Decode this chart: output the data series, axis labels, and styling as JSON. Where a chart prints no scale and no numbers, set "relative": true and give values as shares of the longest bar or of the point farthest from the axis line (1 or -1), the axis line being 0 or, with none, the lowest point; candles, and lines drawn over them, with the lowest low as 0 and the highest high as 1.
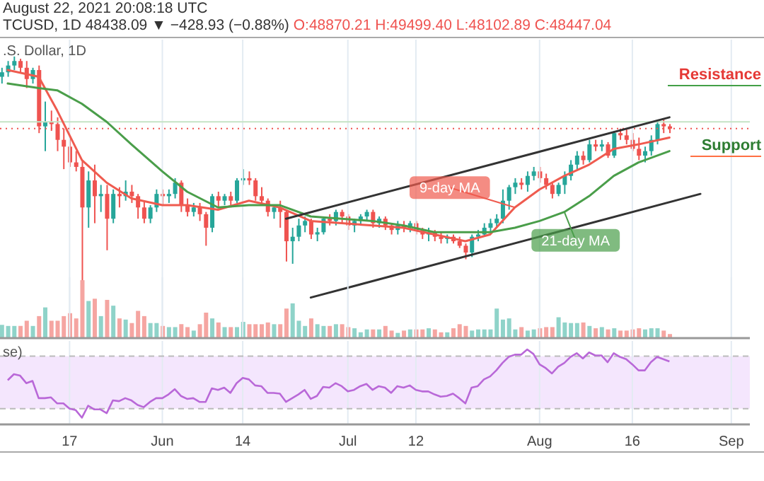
{
  "chart_data": [
    {
      "type": "candlestick",
      "title": "TCUSD, 1D 48438.09 ▼ −428.93 (−0.88%)",
      "subtitle": "O:48870.21 H:49499.40 L:48102.89 C:48447.04",
      "relative": true,
      "grid": "x",
      "tick_labels": false,
      "xlim": [
        "2021-05-05T18:00",
        "2021-09-04"
      ],
      "xticks": [
        "2021-05-17",
        "2021-06-01",
        "2021-06-14",
        "2021-07-01",
        "2021-07-12",
        "2021-08-01",
        "2021-08-16",
        "2021-09-01"
      ],
      "x": [
        "2021-05-06",
        "2021-05-07",
        "2021-05-08",
        "2021-05-09",
        "2021-05-10",
        "2021-05-11",
        "2021-05-12",
        "2021-05-13",
        "2021-05-14",
        "2021-05-15",
        "2021-05-16",
        "2021-05-17",
        "2021-05-18",
        "2021-05-19",
        "2021-05-20",
        "2021-05-21",
        "2021-05-22",
        "2021-05-23",
        "2021-05-24",
        "2021-05-25",
        "2021-05-26",
        "2021-05-27",
        "2021-05-28",
        "2021-05-29",
        "2021-05-30",
        "2021-05-31",
        "2021-06-01",
        "2021-06-02",
        "2021-06-03",
        "2021-06-04",
        "2021-06-05",
        "2021-06-06",
        "2021-06-07",
        "2021-06-08",
        "2021-06-09",
        "2021-06-10",
        "2021-06-11",
        "2021-06-12",
        "2021-06-13",
        "2021-06-14",
        "2021-06-15",
        "2021-06-16",
        "2021-06-17",
        "2021-06-18",
        "2021-06-19",
        "2021-06-20",
        "2021-06-21",
        "2021-06-22",
        "2021-06-23",
        "2021-06-24",
        "2021-06-25",
        "2021-06-26",
        "2021-06-27",
        "2021-06-28",
        "2021-06-29",
        "2021-06-30",
        "2021-07-01",
        "2021-07-02",
        "2021-07-03",
        "2021-07-04",
        "2021-07-05",
        "2021-07-06",
        "2021-07-07",
        "2021-07-08",
        "2021-07-09",
        "2021-07-10",
        "2021-07-11",
        "2021-07-12",
        "2021-07-13",
        "2021-07-14",
        "2021-07-15",
        "2021-07-16",
        "2021-07-17",
        "2021-07-18",
        "2021-07-19",
        "2021-07-20",
        "2021-07-21",
        "2021-07-22",
        "2021-07-23",
        "2021-07-24",
        "2021-07-25",
        "2021-07-26",
        "2021-07-27",
        "2021-07-28",
        "2021-07-29",
        "2021-07-30",
        "2021-07-31",
        "2021-08-01",
        "2021-08-02",
        "2021-08-03",
        "2021-08-04",
        "2021-08-05",
        "2021-08-06",
        "2021-08-07",
        "2021-08-08",
        "2021-08-09",
        "2021-08-10",
        "2021-08-11",
        "2021-08-12",
        "2021-08-13",
        "2021-08-14",
        "2021-08-15",
        "2021-08-16",
        "2021-08-17",
        "2021-08-18",
        "2021-08-19",
        "2021-08-20",
        "2021-08-21",
        "2021-08-22"
      ],
      "ohlc": [
        [
          0.91,
          0.95,
          0.88,
          0.93
        ],
        [
          0.93,
          0.98,
          0.91,
          0.96
        ],
        [
          0.96,
          1.0,
          0.94,
          0.98
        ],
        [
          0.98,
          0.99,
          0.93,
          0.95
        ],
        [
          0.95,
          0.98,
          0.86,
          0.9
        ],
        [
          0.9,
          0.95,
          0.88,
          0.94
        ],
        [
          0.94,
          0.96,
          0.66,
          0.69
        ],
        [
          0.69,
          0.8,
          0.58,
          0.71
        ],
        [
          0.71,
          0.76,
          0.67,
          0.7
        ],
        [
          0.7,
          0.73,
          0.58,
          0.63
        ],
        [
          0.63,
          0.68,
          0.5,
          0.6
        ],
        [
          0.6,
          0.64,
          0.51,
          0.53
        ],
        [
          0.53,
          0.58,
          0.49,
          0.51
        ],
        [
          0.51,
          0.54,
          0.0,
          0.33
        ],
        [
          0.33,
          0.49,
          0.24,
          0.45
        ],
        [
          0.45,
          0.52,
          0.26,
          0.38
        ],
        [
          0.38,
          0.43,
          0.31,
          0.39
        ],
        [
          0.39,
          0.43,
          0.14,
          0.28
        ],
        [
          0.28,
          0.41,
          0.26,
          0.39
        ],
        [
          0.39,
          0.42,
          0.33,
          0.38
        ],
        [
          0.38,
          0.45,
          0.36,
          0.4
        ],
        [
          0.4,
          0.43,
          0.35,
          0.38
        ],
        [
          0.38,
          0.39,
          0.28,
          0.33
        ],
        [
          0.33,
          0.36,
          0.26,
          0.28
        ],
        [
          0.28,
          0.34,
          0.26,
          0.33
        ],
        [
          0.33,
          0.41,
          0.31,
          0.39
        ],
        [
          0.39,
          0.41,
          0.34,
          0.38
        ],
        [
          0.38,
          0.41,
          0.35,
          0.39
        ],
        [
          0.39,
          0.46,
          0.37,
          0.44
        ],
        [
          0.44,
          0.45,
          0.31,
          0.34
        ],
        [
          0.34,
          0.37,
          0.29,
          0.31
        ],
        [
          0.31,
          0.35,
          0.29,
          0.33
        ],
        [
          0.33,
          0.35,
          0.27,
          0.3
        ],
        [
          0.3,
          0.31,
          0.16,
          0.24
        ],
        [
          0.24,
          0.39,
          0.22,
          0.38
        ],
        [
          0.38,
          0.4,
          0.33,
          0.36
        ],
        [
          0.36,
          0.39,
          0.34,
          0.38
        ],
        [
          0.38,
          0.4,
          0.33,
          0.36
        ],
        [
          0.36,
          0.46,
          0.35,
          0.45
        ],
        [
          0.45,
          0.5,
          0.43,
          0.46
        ],
        [
          0.46,
          0.49,
          0.43,
          0.45
        ],
        [
          0.45,
          0.46,
          0.36,
          0.38
        ],
        [
          0.38,
          0.42,
          0.34,
          0.36
        ],
        [
          0.36,
          0.37,
          0.29,
          0.31
        ],
        [
          0.31,
          0.34,
          0.28,
          0.33
        ],
        [
          0.33,
          0.36,
          0.24,
          0.31
        ],
        [
          0.31,
          0.32,
          0.09,
          0.18
        ],
        [
          0.18,
          0.24,
          0.08,
          0.2
        ],
        [
          0.2,
          0.28,
          0.18,
          0.25
        ],
        [
          0.25,
          0.29,
          0.22,
          0.27
        ],
        [
          0.27,
          0.28,
          0.19,
          0.21
        ],
        [
          0.21,
          0.24,
          0.18,
          0.22
        ],
        [
          0.22,
          0.29,
          0.21,
          0.28
        ],
        [
          0.28,
          0.3,
          0.25,
          0.27
        ],
        [
          0.27,
          0.32,
          0.25,
          0.31
        ],
        [
          0.31,
          0.32,
          0.26,
          0.29
        ],
        [
          0.29,
          0.3,
          0.23,
          0.25
        ],
        [
          0.25,
          0.28,
          0.22,
          0.27
        ],
        [
          0.27,
          0.3,
          0.25,
          0.29
        ],
        [
          0.29,
          0.32,
          0.27,
          0.31
        ],
        [
          0.31,
          0.32,
          0.24,
          0.26
        ],
        [
          0.26,
          0.29,
          0.24,
          0.28
        ],
        [
          0.28,
          0.29,
          0.23,
          0.25
        ],
        [
          0.25,
          0.26,
          0.21,
          0.23
        ],
        [
          0.23,
          0.27,
          0.21,
          0.25
        ],
        [
          0.25,
          0.27,
          0.22,
          0.24
        ],
        [
          0.24,
          0.27,
          0.22,
          0.26
        ],
        [
          0.26,
          0.27,
          0.21,
          0.23
        ],
        [
          0.23,
          0.24,
          0.19,
          0.21
        ],
        [
          0.21,
          0.24,
          0.18,
          0.22
        ],
        [
          0.22,
          0.23,
          0.18,
          0.2
        ],
        [
          0.2,
          0.22,
          0.17,
          0.19
        ],
        [
          0.19,
          0.21,
          0.17,
          0.2
        ],
        [
          0.2,
          0.21,
          0.17,
          0.18
        ],
        [
          0.18,
          0.2,
          0.15,
          0.16
        ],
        [
          0.16,
          0.17,
          0.1,
          0.13
        ],
        [
          0.13,
          0.21,
          0.11,
          0.2
        ],
        [
          0.2,
          0.23,
          0.18,
          0.21
        ],
        [
          0.21,
          0.26,
          0.2,
          0.24
        ],
        [
          0.24,
          0.28,
          0.22,
          0.26
        ],
        [
          0.26,
          0.3,
          0.24,
          0.28
        ],
        [
          0.28,
          0.41,
          0.26,
          0.36
        ],
        [
          0.36,
          0.43,
          0.32,
          0.42
        ],
        [
          0.42,
          0.46,
          0.39,
          0.44
        ],
        [
          0.44,
          0.46,
          0.41,
          0.43
        ],
        [
          0.43,
          0.49,
          0.4,
          0.47
        ],
        [
          0.47,
          0.51,
          0.45,
          0.49
        ],
        [
          0.49,
          0.51,
          0.44,
          0.46
        ],
        [
          0.46,
          0.48,
          0.41,
          0.43
        ],
        [
          0.43,
          0.44,
          0.37,
          0.39
        ],
        [
          0.39,
          0.44,
          0.38,
          0.43
        ],
        [
          0.43,
          0.49,
          0.39,
          0.47
        ],
        [
          0.47,
          0.54,
          0.45,
          0.52
        ],
        [
          0.52,
          0.58,
          0.5,
          0.56
        ],
        [
          0.56,
          0.58,
          0.52,
          0.54
        ],
        [
          0.54,
          0.63,
          0.53,
          0.61
        ],
        [
          0.61,
          0.63,
          0.58,
          0.6
        ],
        [
          0.6,
          0.63,
          0.58,
          0.61
        ],
        [
          0.61,
          0.62,
          0.55,
          0.56
        ],
        [
          0.56,
          0.67,
          0.55,
          0.66
        ],
        [
          0.66,
          0.68,
          0.63,
          0.65
        ],
        [
          0.65,
          0.68,
          0.61,
          0.63
        ],
        [
          0.63,
          0.66,
          0.58,
          0.59
        ],
        [
          0.59,
          0.64,
          0.54,
          0.56
        ],
        [
          0.56,
          0.6,
          0.53,
          0.58
        ],
        [
          0.58,
          0.65,
          0.56,
          0.63
        ],
        [
          0.63,
          0.72,
          0.61,
          0.7
        ],
        [
          0.7,
          0.72,
          0.66,
          0.69
        ],
        [
          0.69,
          0.7,
          0.66,
          0.68
        ]
      ],
      "series": [
        {
          "name": "9-day MA",
          "type": "line",
          "color": "#ef5b4f",
          "x": [
            "2021-05-07",
            "2021-05-12",
            "2021-05-15",
            "2021-05-19",
            "2021-05-23",
            "2021-05-27",
            "2021-06-01",
            "2021-06-05",
            "2021-06-10",
            "2021-06-15",
            "2021-06-20",
            "2021-06-25",
            "2021-06-30",
            "2021-07-05",
            "2021-07-10",
            "2021-07-15",
            "2021-07-20",
            "2021-07-24",
            "2021-07-28",
            "2021-08-01",
            "2021-08-05",
            "2021-08-09",
            "2021-08-13",
            "2021-08-17",
            "2021-08-22"
          ],
          "values": [
            0.94,
            0.91,
            0.76,
            0.54,
            0.44,
            0.37,
            0.34,
            0.34,
            0.32,
            0.36,
            0.33,
            0.27,
            0.26,
            0.25,
            0.24,
            0.21,
            0.18,
            0.21,
            0.33,
            0.41,
            0.47,
            0.52,
            0.59,
            0.61,
            0.64
          ]
        },
        {
          "name": "21-day MA",
          "type": "line",
          "color": "#4a9e4a",
          "x": [
            "2021-05-07",
            "2021-05-12",
            "2021-05-15",
            "2021-05-19",
            "2021-05-23",
            "2021-05-27",
            "2021-06-01",
            "2021-06-05",
            "2021-06-10",
            "2021-06-15",
            "2021-06-20",
            "2021-06-25",
            "2021-06-30",
            "2021-07-05",
            "2021-07-10",
            "2021-07-15",
            "2021-07-20",
            "2021-07-24",
            "2021-07-28",
            "2021-08-01",
            "2021-08-05",
            "2021-08-09",
            "2021-08-13",
            "2021-08-17",
            "2021-08-22"
          ],
          "values": [
            0.88,
            0.86,
            0.85,
            0.79,
            0.71,
            0.61,
            0.49,
            0.4,
            0.33,
            0.34,
            0.34,
            0.29,
            0.28,
            0.27,
            0.25,
            0.22,
            0.22,
            0.22,
            0.24,
            0.27,
            0.31,
            0.38,
            0.47,
            0.53,
            0.58
          ]
        },
        {
          "type": "line",
          "color": "#333333",
          "x": [
            "2021-06-21",
            "2021-08-22"
          ],
          "values": [
            0.28,
            0.73
          ]
        },
        {
          "type": "line",
          "color": "#333333",
          "x": [
            "2021-06-25",
            "2021-08-27"
          ],
          "values": [
            -0.07,
            0.39
          ]
        }
      ],
      "ref_lines": [
        {
          "axis": "y",
          "value": 0.71,
          "color": "#c5e3c5",
          "line_style": "solid"
        },
        {
          "axis": "y",
          "value": 0.68,
          "color": "#ef5350",
          "line_style": "dotted"
        }
      ],
      "annotations": [
        "August 22, 2021 20:08:18 UTC",
        ".S. Dollar, 1D",
        "Resistance",
        "Support"
      ]
    },
    {
      "type": "bar",
      "relative": true,
      "grid": "x",
      "tick_labels": false,
      "xlim": [
        "2021-05-05T18:00",
        "2021-09-04"
      ],
      "xticks": [
        "2021-05-17",
        "2021-06-01",
        "2021-06-14",
        "2021-07-01",
        "2021-07-12",
        "2021-08-01",
        "2021-08-16",
        "2021-09-01"
      ],
      "x": [
        "2021-05-06",
        "2021-05-07",
        "2021-05-08",
        "2021-05-09",
        "2021-05-10",
        "2021-05-11",
        "2021-05-12",
        "2021-05-13",
        "2021-05-14",
        "2021-05-15",
        "2021-05-16",
        "2021-05-17",
        "2021-05-18",
        "2021-05-19",
        "2021-05-20",
        "2021-05-21",
        "2021-05-22",
        "2021-05-23",
        "2021-05-24",
        "2021-05-25",
        "2021-05-26",
        "2021-05-27",
        "2021-05-28",
        "2021-05-29",
        "2021-05-30",
        "2021-05-31",
        "2021-06-01",
        "2021-06-02",
        "2021-06-03",
        "2021-06-04",
        "2021-06-05",
        "2021-06-06",
        "2021-06-07",
        "2021-06-08",
        "2021-06-09",
        "2021-06-10",
        "2021-06-11",
        "2021-06-12",
        "2021-06-13",
        "2021-06-14",
        "2021-06-15",
        "2021-06-16",
        "2021-06-17",
        "2021-06-18",
        "2021-06-19",
        "2021-06-20",
        "2021-06-21",
        "2021-06-22",
        "2021-06-23",
        "2021-06-24",
        "2021-06-25",
        "2021-06-26",
        "2021-06-27",
        "2021-06-28",
        "2021-06-29",
        "2021-06-30",
        "2021-07-01",
        "2021-07-02",
        "2021-07-03",
        "2021-07-04",
        "2021-07-05",
        "2021-07-06",
        "2021-07-07",
        "2021-07-08",
        "2021-07-09",
        "2021-07-10",
        "2021-07-11",
        "2021-07-12",
        "2021-07-13",
        "2021-07-14",
        "2021-07-15",
        "2021-07-16",
        "2021-07-17",
        "2021-07-18",
        "2021-07-19",
        "2021-07-20",
        "2021-07-21",
        "2021-07-22",
        "2021-07-23",
        "2021-07-24",
        "2021-07-25",
        "2021-07-26",
        "2021-07-27",
        "2021-07-28",
        "2021-07-29",
        "2021-07-30",
        "2021-07-31",
        "2021-08-01",
        "2021-08-02",
        "2021-08-03",
        "2021-08-04",
        "2021-08-05",
        "2021-08-06",
        "2021-08-07",
        "2021-08-08",
        "2021-08-09",
        "2021-08-10",
        "2021-08-11",
        "2021-08-12",
        "2021-08-13",
        "2021-08-14",
        "2021-08-15",
        "2021-08-16",
        "2021-08-17",
        "2021-08-18",
        "2021-08-19",
        "2021-08-20",
        "2021-08-21",
        "2021-08-22"
      ],
      "values": [
        0.23,
        0.21,
        0.21,
        0.21,
        0.3,
        0.21,
        0.38,
        0.53,
        0.3,
        0.3,
        0.38,
        0.43,
        0.34,
        1,
        0.64,
        0.68,
        0.38,
        0.66,
        0.56,
        0.34,
        0.32,
        0.26,
        0.47,
        0.38,
        0.26,
        0.26,
        0.21,
        0.19,
        0.19,
        0.24,
        0.19,
        0.13,
        0.24,
        0.44,
        0.34,
        0.27,
        0.19,
        0.19,
        0.19,
        0.28,
        0.24,
        0.24,
        0.24,
        0.27,
        0.24,
        0.24,
        0.51,
        0.6,
        0.3,
        0.21,
        0.34,
        0.24,
        0.21,
        0.21,
        0.24,
        0.24,
        0.19,
        0.17,
        0.1,
        0.15,
        0.15,
        0.15,
        0.21,
        0.13,
        0.09,
        0.13,
        0.15,
        0.15,
        0.15,
        0.17,
        0.15,
        0.1,
        0.1,
        0.17,
        0.24,
        0.21,
        0.13,
        0.15,
        0.15,
        0.15,
        0.51,
        0.32,
        0.34,
        0.15,
        0.19,
        0.13,
        0.15,
        0.17,
        0.19,
        0.19,
        0.36,
        0.27,
        0.26,
        0.26,
        0.27,
        0.21,
        0.17,
        0.19,
        0.15,
        0.17,
        0.13,
        0.13,
        0.15,
        0.17,
        0.15,
        0.17,
        0.17,
        0.13,
        0.07
      ],
      "colors": [
        "#8fd3c9",
        "#8fd3c9",
        "#8fd3c9",
        "#f5a5a1",
        "#f5a5a1",
        "#8fd3c9",
        "#f5a5a1",
        "#8fd3c9",
        "#f5a5a1",
        "#f5a5a1",
        "#f5a5a1",
        "#f5a5a1",
        "#f5a5a1",
        "#f5a5a1",
        "#8fd3c9",
        "#f5a5a1",
        "#8fd3c9",
        "#f5a5a1",
        "#8fd3c9",
        "#f5a5a1",
        "#8fd3c9",
        "#f5a5a1",
        "#f5a5a1",
        "#f5a5a1",
        "#8fd3c9",
        "#8fd3c9",
        "#f5a5a1",
        "#8fd3c9",
        "#8fd3c9",
        "#f5a5a1",
        "#f5a5a1",
        "#8fd3c9",
        "#f5a5a1",
        "#f5a5a1",
        "#8fd3c9",
        "#f5a5a1",
        "#8fd3c9",
        "#f5a5a1",
        "#8fd3c9",
        "#8fd3c9",
        "#f5a5a1",
        "#f5a5a1",
        "#f5a5a1",
        "#f5a5a1",
        "#8fd3c9",
        "#f5a5a1",
        "#f5a5a1",
        "#8fd3c9",
        "#8fd3c9",
        "#8fd3c9",
        "#f5a5a1",
        "#8fd3c9",
        "#8fd3c9",
        "#f5a5a1",
        "#8fd3c9",
        "#f5a5a1",
        "#f5a5a1",
        "#8fd3c9",
        "#8fd3c9",
        "#8fd3c9",
        "#f5a5a1",
        "#8fd3c9",
        "#f5a5a1",
        "#f5a5a1",
        "#8fd3c9",
        "#f5a5a1",
        "#8fd3c9",
        "#f5a5a1",
        "#f5a5a1",
        "#8fd3c9",
        "#f5a5a1",
        "#f5a5a1",
        "#8fd3c9",
        "#f5a5a1",
        "#f5a5a1",
        "#f5a5a1",
        "#8fd3c9",
        "#8fd3c9",
        "#8fd3c9",
        "#8fd3c9",
        "#8fd3c9",
        "#8fd3c9",
        "#8fd3c9",
        "#8fd3c9",
        "#f5a5a1",
        "#8fd3c9",
        "#8fd3c9",
        "#f5a5a1",
        "#f5a5a1",
        "#f5a5a1",
        "#8fd3c9",
        "#8fd3c9",
        "#8fd3c9",
        "#8fd3c9",
        "#f5a5a1",
        "#8fd3c9",
        "#f5a5a1",
        "#8fd3c9",
        "#f5a5a1",
        "#8fd3c9",
        "#f5a5a1",
        "#f5a5a1",
        "#f5a5a1",
        "#f5a5a1",
        "#8fd3c9",
        "#8fd3c9",
        "#8fd3c9",
        "#f5a5a1",
        "#f5a5a1"
      ]
    },
    {
      "type": "line",
      "relative": true,
      "grid": "x",
      "tick_labels": "x",
      "color": "#b968d8",
      "xlim": [
        "2021-05-05T18:00",
        "2021-09-04"
      ],
      "xticks": [
        {
          "value": "2021-05-17",
          "label": "17"
        },
        {
          "value": "2021-06-01",
          "label": "Jun"
        },
        {
          "value": "2021-06-14",
          "label": "14"
        },
        {
          "value": "2021-07-01",
          "label": "Jul"
        },
        {
          "value": "2021-07-12",
          "label": "12"
        },
        {
          "value": "2021-08-01",
          "label": "Aug"
        },
        {
          "value": "2021-08-16",
          "label": "16"
        },
        {
          "value": "2021-09-01",
          "label": "Sep"
        }
      ],
      "x": [
        "2021-05-07",
        "2021-05-08",
        "2021-05-09",
        "2021-05-10",
        "2021-05-11",
        "2021-05-12",
        "2021-05-13",
        "2021-05-14",
        "2021-05-15",
        "2021-05-16",
        "2021-05-17",
        "2021-05-18",
        "2021-05-19",
        "2021-05-20",
        "2021-05-21",
        "2021-05-22",
        "2021-05-23",
        "2021-05-24",
        "2021-05-25",
        "2021-05-26",
        "2021-05-27",
        "2021-05-28",
        "2021-05-29",
        "2021-05-30",
        "2021-05-31",
        "2021-06-01",
        "2021-06-02",
        "2021-06-03",
        "2021-06-04",
        "2021-06-05",
        "2021-06-06",
        "2021-06-07",
        "2021-06-08",
        "2021-06-09",
        "2021-06-10",
        "2021-06-11",
        "2021-06-12",
        "2021-06-13",
        "2021-06-14",
        "2021-06-15",
        "2021-06-16",
        "2021-06-17",
        "2021-06-18",
        "2021-06-19",
        "2021-06-20",
        "2021-06-21",
        "2021-06-22",
        "2021-06-23",
        "2021-06-24",
        "2021-06-25",
        "2021-06-26",
        "2021-06-27",
        "2021-06-28",
        "2021-06-29",
        "2021-06-30",
        "2021-07-01",
        "2021-07-02",
        "2021-07-03",
        "2021-07-04",
        "2021-07-05",
        "2021-07-06",
        "2021-07-07",
        "2021-07-08",
        "2021-07-09",
        "2021-07-10",
        "2021-07-11",
        "2021-07-12",
        "2021-07-13",
        "2021-07-14",
        "2021-07-15",
        "2021-07-16",
        "2021-07-17",
        "2021-07-18",
        "2021-07-19",
        "2021-07-20",
        "2021-07-21",
        "2021-07-22",
        "2021-07-23",
        "2021-07-24",
        "2021-07-25",
        "2021-07-26",
        "2021-07-27",
        "2021-07-28",
        "2021-07-29",
        "2021-07-30",
        "2021-07-31",
        "2021-08-01",
        "2021-08-02",
        "2021-08-03",
        "2021-08-04",
        "2021-08-05",
        "2021-08-06",
        "2021-08-07",
        "2021-08-08",
        "2021-08-09",
        "2021-08-10",
        "2021-08-11",
        "2021-08-12",
        "2021-08-13",
        "2021-08-14",
        "2021-08-15",
        "2021-08-16",
        "2021-08-17",
        "2021-08-18",
        "2021-08-19",
        "2021-08-20",
        "2021-08-21",
        "2021-08-22"
      ],
      "values": [
        0.59,
        0.67,
        0.65,
        0.55,
        0.58,
        0.35,
        0.35,
        0.36,
        0.28,
        0.28,
        0.21,
        0.19,
        0.09,
        0.25,
        0.2,
        0.2,
        0.15,
        0.32,
        0.31,
        0.35,
        0.32,
        0.26,
        0.23,
        0.3,
        0.35,
        0.35,
        0.4,
        0.47,
        0.38,
        0.34,
        0.35,
        0.3,
        0.3,
        0.48,
        0.46,
        0.49,
        0.42,
        0.55,
        0.62,
        0.6,
        0.52,
        0.51,
        0.42,
        0.42,
        0.41,
        0.3,
        0.35,
        0.4,
        0.46,
        0.34,
        0.38,
        0.5,
        0.49,
        0.55,
        0.51,
        0.44,
        0.46,
        0.51,
        0.54,
        0.46,
        0.51,
        0.49,
        0.42,
        0.51,
        0.49,
        0.52,
        0.46,
        0.44,
        0.44,
        0.4,
        0.37,
        0.38,
        0.41,
        0.35,
        0.28,
        0.49,
        0.51,
        0.6,
        0.64,
        0.72,
        0.82,
        0.9,
        0.93,
        0.93,
        1,
        0.94,
        0.8,
        0.75,
        0.68,
        0.77,
        0.82,
        0.9,
        0.95,
        0.88,
        0.96,
        0.92,
        0.92,
        0.83,
        0.95,
        0.9,
        0.87,
        0.8,
        0.72,
        0.72,
        0.83,
        0.9,
        0.87,
        0.84
      ],
      "bands": [
        {
          "axis": "y",
          "from": 0.21,
          "to": 0.91,
          "color": "#f4e6fd"
        }
      ],
      "ref_lines": [
        {
          "axis": "y",
          "value": 0.21,
          "color": "#bbbbbb",
          "line_style": "dashed"
        },
        {
          "axis": "y",
          "value": 0.91,
          "color": "#bbbbbb",
          "line_style": "dashed"
        }
      ],
      "annotations": [
        "se)"
      ]
    }
  ]
}
